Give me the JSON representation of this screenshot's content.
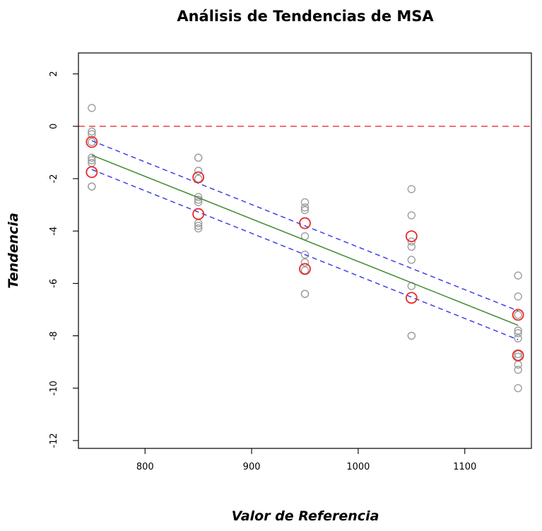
{
  "chart_data": {
    "type": "scatter",
    "title": "Análisis de Tendencias de MSA",
    "xlabel": "Valor de Referencia",
    "ylabel": "Tendencia",
    "xlim": [
      737.5,
      1162.5
    ],
    "ylim": [
      -12.3,
      2.8
    ],
    "x_ticks": [
      800,
      900,
      1000,
      1100
    ],
    "y_ticks": [
      2,
      0,
      -2,
      -4,
      -6,
      -8,
      -10,
      -12
    ],
    "x_tick_labels": [
      "800",
      "900",
      "1000",
      "1100"
    ],
    "y_tick_labels": [
      "2",
      "0",
      "-2",
      "-4",
      "-6",
      "-8",
      "-10",
      "-12"
    ],
    "grid": false,
    "series": [
      {
        "name": "Observaciones",
        "kind": "points",
        "color": "#9e9e9e",
        "x": [
          750,
          750,
          750,
          750,
          750,
          750,
          750,
          750,
          750,
          850,
          850,
          850,
          850,
          850,
          850,
          850,
          850,
          850,
          850,
          950,
          950,
          950,
          950,
          950,
          950,
          950,
          950,
          950,
          1050,
          1050,
          1050,
          1050,
          1050,
          1050,
          1050,
          1050,
          1150,
          1150,
          1150,
          1150,
          1150,
          1150,
          1150,
          1150,
          1150,
          1150,
          1150
        ],
        "y": [
          0.7,
          -0.2,
          -0.3,
          -0.6,
          -1.2,
          -1.3,
          -1.4,
          -2.3,
          -2.3,
          -1.2,
          -1.2,
          -1.7,
          -2.7,
          -2.8,
          -2.9,
          -3.7,
          -3.8,
          -3.9,
          -2.0,
          -2.9,
          -3.1,
          -3.2,
          -4.2,
          -4.9,
          -5.2,
          -5.5,
          -6.4,
          -6.4,
          -2.4,
          -3.4,
          -4.4,
          -4.6,
          -5.1,
          -6.1,
          -8.0,
          -8.0,
          -5.7,
          -6.5,
          -7.2,
          -7.8,
          -7.9,
          -8.1,
          -8.7,
          -8.8,
          -9.1,
          -9.3,
          -10.0
        ]
      },
      {
        "name": "Límites de tendencia",
        "kind": "points",
        "color": "#e8292c",
        "x": [
          750,
          750,
          850,
          850,
          950,
          950,
          1050,
          1050,
          1150,
          1150
        ],
        "y": [
          -0.6,
          -1.75,
          -1.95,
          -3.35,
          -3.7,
          -5.45,
          -4.2,
          -6.55,
          -7.2,
          -8.75
        ]
      },
      {
        "name": "Línea de referencia cero",
        "kind": "hline",
        "color": "#f0504d",
        "dash": true,
        "y": 0
      },
      {
        "name": "Regresión",
        "kind": "line",
        "color": "#3c8a2e",
        "dash": false,
        "x": [
          750,
          1150
        ],
        "y": [
          -1.1,
          -7.6
        ]
      },
      {
        "name": "Límite superior",
        "kind": "line",
        "color": "#3f3fe6",
        "dash": true,
        "x": [
          750,
          1150
        ],
        "y": [
          -0.55,
          -7.05
        ]
      },
      {
        "name": "Límite inferior",
        "kind": "line",
        "color": "#3f3fe6",
        "dash": true,
        "x": [
          750,
          1150
        ],
        "y": [
          -1.65,
          -8.15
        ]
      }
    ]
  }
}
